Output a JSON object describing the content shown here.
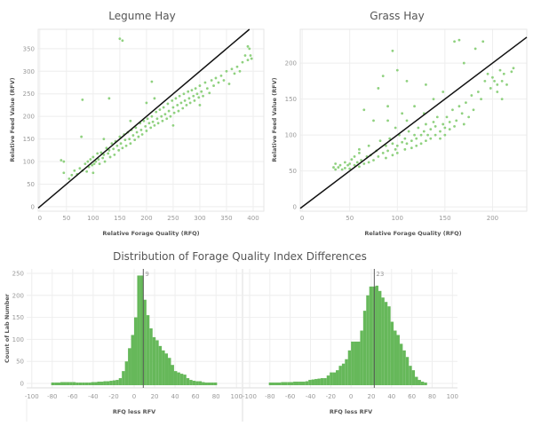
{
  "chart_data": [
    {
      "type": "scatter",
      "title": "Legume Hay",
      "xlabel": "Relative Forage Quality (RFQ)",
      "ylabel": "Relative Feed Value (RFV)",
      "xlim": [
        -3,
        420
      ],
      "ylim": [
        -10,
        393
      ],
      "xticks": [
        0,
        50,
        100,
        150,
        200,
        250,
        300,
        350,
        400
      ],
      "yticks": [
        0,
        50,
        100,
        150,
        200,
        250,
        300,
        350
      ],
      "grid": true,
      "reference_line": "y = x",
      "point_color": "#8fd17f",
      "points": [
        [
          40,
          103
        ],
        [
          45,
          100
        ],
        [
          45,
          75
        ],
        [
          55,
          62
        ],
        [
          60,
          70
        ],
        [
          65,
          80
        ],
        [
          70,
          72
        ],
        [
          75,
          85
        ],
        [
          78,
          155
        ],
        [
          80,
          237
        ],
        [
          80,
          80
        ],
        [
          85,
          95
        ],
        [
          88,
          78
        ],
        [
          90,
          100
        ],
        [
          92,
          88
        ],
        [
          95,
          105
        ],
        [
          98,
          92
        ],
        [
          100,
          110
        ],
        [
          102,
          95
        ],
        [
          105,
          100
        ],
        [
          108,
          118
        ],
        [
          110,
          105
        ],
        [
          112,
          95
        ],
        [
          115,
          120
        ],
        [
          118,
          108
        ],
        [
          120,
          115
        ],
        [
          122,
          100
        ],
        [
          125,
          130
        ],
        [
          128,
          118
        ],
        [
          130,
          240
        ],
        [
          130,
          125
        ],
        [
          132,
          110
        ],
        [
          135,
          140
        ],
        [
          138,
          128
        ],
        [
          140,
          115
        ],
        [
          142,
          145
        ],
        [
          145,
          135
        ],
        [
          148,
          125
        ],
        [
          150,
          155
        ],
        [
          150,
          372
        ],
        [
          152,
          140
        ],
        [
          155,
          368
        ],
        [
          155,
          130
        ],
        [
          158,
          160
        ],
        [
          160,
          148
        ],
        [
          162,
          135
        ],
        [
          165,
          165
        ],
        [
          168,
          150
        ],
        [
          170,
          140
        ],
        [
          172,
          170
        ],
        [
          175,
          158
        ],
        [
          178,
          148
        ],
        [
          180,
          175
        ],
        [
          182,
          165
        ],
        [
          185,
          155
        ],
        [
          188,
          185
        ],
        [
          190,
          170
        ],
        [
          192,
          160
        ],
        [
          195,
          190
        ],
        [
          198,
          178
        ],
        [
          200,
          168
        ],
        [
          202,
          195
        ],
        [
          205,
          185
        ],
        [
          208,
          175
        ],
        [
          210,
          277
        ],
        [
          210,
          200
        ],
        [
          212,
          188
        ],
        [
          215,
          180
        ],
        [
          218,
          210
        ],
        [
          220,
          195
        ],
        [
          222,
          185
        ],
        [
          225,
          215
        ],
        [
          228,
          200
        ],
        [
          230,
          190
        ],
        [
          232,
          220
        ],
        [
          235,
          205
        ],
        [
          238,
          195
        ],
        [
          240,
          228
        ],
        [
          242,
          212
        ],
        [
          245,
          200
        ],
        [
          248,
          235
        ],
        [
          250,
          220
        ],
        [
          252,
          208
        ],
        [
          255,
          240
        ],
        [
          258,
          225
        ],
        [
          260,
          212
        ],
        [
          262,
          245
        ],
        [
          265,
          230
        ],
        [
          268,
          218
        ],
        [
          270,
          250
        ],
        [
          272,
          235
        ],
        [
          275,
          225
        ],
        [
          278,
          255
        ],
        [
          280,
          240
        ],
        [
          282,
          230
        ],
        [
          285,
          258
        ],
        [
          288,
          245
        ],
        [
          290,
          235
        ],
        [
          292,
          262
        ],
        [
          295,
          250
        ],
        [
          298,
          242
        ],
        [
          300,
          268
        ],
        [
          303,
          255
        ],
        [
          306,
          245
        ],
        [
          310,
          275
        ],
        [
          314,
          262
        ],
        [
          318,
          252
        ],
        [
          322,
          280
        ],
        [
          326,
          268
        ],
        [
          330,
          285
        ],
        [
          335,
          275
        ],
        [
          340,
          290
        ],
        [
          345,
          280
        ],
        [
          350,
          300
        ],
        [
          355,
          272
        ],
        [
          360,
          305
        ],
        [
          365,
          295
        ],
        [
          370,
          310
        ],
        [
          375,
          300
        ],
        [
          380,
          320
        ],
        [
          385,
          335
        ],
        [
          390,
          325
        ],
        [
          393,
          350
        ],
        [
          395,
          335
        ],
        [
          397,
          328
        ],
        [
          390,
          355
        ],
        [
          215,
          240
        ],
        [
          170,
          190
        ],
        [
          250,
          180
        ],
        [
          200,
          230
        ],
        [
          120,
          150
        ],
        [
          100,
          75
        ],
        [
          300,
          225
        ]
      ]
    },
    {
      "type": "scatter",
      "title": "Grass Hay",
      "xlabel": "Relative Forage Quality (RFQ)",
      "ylabel": "Relative Feed Value (RFV)",
      "xlim": [
        -2,
        236
      ],
      "ylim": [
        -6,
        247
      ],
      "xticks": [
        0,
        50,
        100,
        150,
        200
      ],
      "yticks": [
        0,
        50,
        100,
        150,
        200
      ],
      "grid": true,
      "reference_line": "y = x",
      "point_color": "#8fd17f",
      "points": [
        [
          33,
          55
        ],
        [
          35,
          52
        ],
        [
          35,
          60
        ],
        [
          38,
          55
        ],
        [
          40,
          58
        ],
        [
          42,
          52
        ],
        [
          45,
          62
        ],
        [
          45,
          54
        ],
        [
          48,
          58
        ],
        [
          50,
          60
        ],
        [
          50,
          53
        ],
        [
          52,
          66
        ],
        [
          55,
          58
        ],
        [
          55,
          70
        ],
        [
          58,
          62
        ],
        [
          60,
          56
        ],
        [
          60,
          75
        ],
        [
          62,
          65
        ],
        [
          65,
          60
        ],
        [
          65,
          135
        ],
        [
          68,
          70
        ],
        [
          70,
          62
        ],
        [
          70,
          85
        ],
        [
          72,
          72
        ],
        [
          75,
          65
        ],
        [
          75,
          120
        ],
        [
          78,
          78
        ],
        [
          80,
          70
        ],
        [
          80,
          165
        ],
        [
          82,
          92
        ],
        [
          85,
          75
        ],
        [
          85,
          182
        ],
        [
          88,
          68
        ],
        [
          88,
          85
        ],
        [
          90,
          78
        ],
        [
          90,
          140
        ],
        [
          92,
          95
        ],
        [
          95,
          72
        ],
        [
          95,
          217
        ],
        [
          95,
          88
        ],
        [
          98,
          80
        ],
        [
          98,
          110
        ],
        [
          100,
          85
        ],
        [
          100,
          190
        ],
        [
          100,
          75
        ],
        [
          102,
          100
        ],
        [
          105,
          90
        ],
        [
          105,
          130
        ],
        [
          108,
          80
        ],
        [
          108,
          95
        ],
        [
          110,
          88
        ],
        [
          110,
          120
        ],
        [
          112,
          105
        ],
        [
          115,
          92
        ],
        [
          115,
          82
        ],
        [
          118,
          100
        ],
        [
          118,
          140
        ],
        [
          120,
          95
        ],
        [
          120,
          85
        ],
        [
          122,
          110
        ],
        [
          125,
          100
        ],
        [
          125,
          88
        ],
        [
          128,
          105
        ],
        [
          128,
          130
        ],
        [
          130,
          92
        ],
        [
          130,
          115
        ],
        [
          132,
          100
        ],
        [
          135,
          108
        ],
        [
          135,
          95
        ],
        [
          138,
          118
        ],
        [
          138,
          150
        ],
        [
          140,
          100
        ],
        [
          140,
          112
        ],
        [
          142,
          125
        ],
        [
          145,
          105
        ],
        [
          145,
          95
        ],
        [
          148,
          115
        ],
        [
          148,
          160
        ],
        [
          150,
          110
        ],
        [
          150,
          100
        ],
        [
          152,
          125
        ],
        [
          155,
          108
        ],
        [
          155,
          118
        ],
        [
          158,
          135
        ],
        [
          160,
          112
        ],
        [
          160,
          230
        ],
        [
          162,
          120
        ],
        [
          165,
          140
        ],
        [
          165,
          232
        ],
        [
          168,
          130
        ],
        [
          170,
          200
        ],
        [
          172,
          145
        ],
        [
          175,
          125
        ],
        [
          178,
          155
        ],
        [
          180,
          135
        ],
        [
          182,
          220
        ],
        [
          185,
          160
        ],
        [
          188,
          150
        ],
        [
          190,
          230
        ],
        [
          192,
          175
        ],
        [
          195,
          185
        ],
        [
          198,
          165
        ],
        [
          200,
          180
        ],
        [
          202,
          175
        ],
        [
          205,
          170
        ],
        [
          208,
          190
        ],
        [
          210,
          175
        ],
        [
          212,
          185
        ],
        [
          215,
          170
        ],
        [
          220,
          188
        ],
        [
          222,
          193
        ],
        [
          210,
          150
        ],
        [
          205,
          160
        ],
        [
          170,
          115
        ],
        [
          130,
          170
        ],
        [
          110,
          175
        ],
        [
          90,
          120
        ],
        [
          60,
          80
        ]
      ]
    },
    {
      "type": "bar",
      "title": "Distribution of Forage Quality Index Differences",
      "xlabel": "RFQ less RFV",
      "ylabel": "Count of Lab Number",
      "xlim": [
        -105,
        105
      ],
      "ylim": [
        -10,
        260
      ],
      "xticks": [
        -100,
        -80,
        -60,
        -40,
        -20,
        0,
        20,
        40,
        60,
        80,
        100
      ],
      "yticks": [
        0,
        50,
        100,
        150,
        200,
        250
      ],
      "bar_color": "#66b85a",
      "median": 9,
      "median_label": "9",
      "bins": [
        [
          -81,
          2
        ],
        [
          -78,
          2
        ],
        [
          -72,
          3
        ],
        [
          -69,
          3
        ],
        [
          -66,
          3
        ],
        [
          -63,
          3
        ],
        [
          -60,
          3
        ],
        [
          -57,
          2
        ],
        [
          -54,
          2
        ],
        [
          -51,
          2
        ],
        [
          -48,
          2
        ],
        [
          -45,
          2
        ],
        [
          -42,
          3
        ],
        [
          -39,
          3
        ],
        [
          -36,
          4
        ],
        [
          -33,
          4
        ],
        [
          -30,
          5
        ],
        [
          -27,
          5
        ],
        [
          -24,
          6
        ],
        [
          -21,
          7
        ],
        [
          -18,
          8
        ],
        [
          -15,
          12
        ],
        [
          -12,
          28
        ],
        [
          -9,
          50
        ],
        [
          -6,
          80
        ],
        [
          -3,
          110
        ],
        [
          0,
          150
        ],
        [
          3,
          245
        ],
        [
          6,
          245
        ],
        [
          9,
          190
        ],
        [
          12,
          155
        ],
        [
          15,
          125
        ],
        [
          18,
          105
        ],
        [
          21,
          98
        ],
        [
          24,
          85
        ],
        [
          27,
          75
        ],
        [
          30,
          68
        ],
        [
          33,
          58
        ],
        [
          36,
          42
        ],
        [
          39,
          28
        ],
        [
          42,
          25
        ],
        [
          45,
          22
        ],
        [
          48,
          20
        ],
        [
          51,
          12
        ],
        [
          54,
          8
        ],
        [
          57,
          6
        ],
        [
          60,
          5
        ],
        [
          63,
          5
        ],
        [
          66,
          3
        ],
        [
          69,
          2
        ],
        [
          72,
          2
        ],
        [
          75,
          2
        ],
        [
          78,
          2
        ]
      ]
    },
    {
      "type": "bar",
      "xlabel": "RFQ less RFV",
      "xlim": [
        -107,
        105
      ],
      "ylim": [
        -10,
        260
      ],
      "xticks": [
        -100,
        -80,
        -60,
        -40,
        -20,
        0,
        20,
        40,
        60,
        80,
        100
      ],
      "bar_color": "#66b85a",
      "median": 23,
      "median_label": "23",
      "bins": [
        [
          -81,
          2
        ],
        [
          -75,
          2
        ],
        [
          -69,
          3
        ],
        [
          -63,
          3
        ],
        [
          -57,
          4
        ],
        [
          -51,
          4
        ],
        [
          -45,
          5
        ],
        [
          -42,
          8
        ],
        [
          -39,
          9
        ],
        [
          -36,
          10
        ],
        [
          -33,
          11
        ],
        [
          -30,
          12
        ],
        [
          -27,
          12
        ],
        [
          -24,
          18
        ],
        [
          -21,
          25
        ],
        [
          -18,
          25
        ],
        [
          -15,
          30
        ],
        [
          -12,
          40
        ],
        [
          -9,
          45
        ],
        [
          -6,
          55
        ],
        [
          -3,
          75
        ],
        [
          0,
          95
        ],
        [
          3,
          95
        ],
        [
          6,
          95
        ],
        [
          9,
          120
        ],
        [
          12,
          165
        ],
        [
          15,
          200
        ],
        [
          18,
          220
        ],
        [
          21,
          220
        ],
        [
          24,
          222
        ],
        [
          27,
          210
        ],
        [
          30,
          195
        ],
        [
          33,
          185
        ],
        [
          36,
          175
        ],
        [
          39,
          140
        ],
        [
          42,
          120
        ],
        [
          45,
          110
        ],
        [
          48,
          90
        ],
        [
          51,
          75
        ],
        [
          54,
          60
        ],
        [
          57,
          40
        ],
        [
          60,
          30
        ],
        [
          63,
          15
        ],
        [
          66,
          8
        ],
        [
          69,
          4
        ],
        [
          72,
          2
        ]
      ]
    }
  ]
}
